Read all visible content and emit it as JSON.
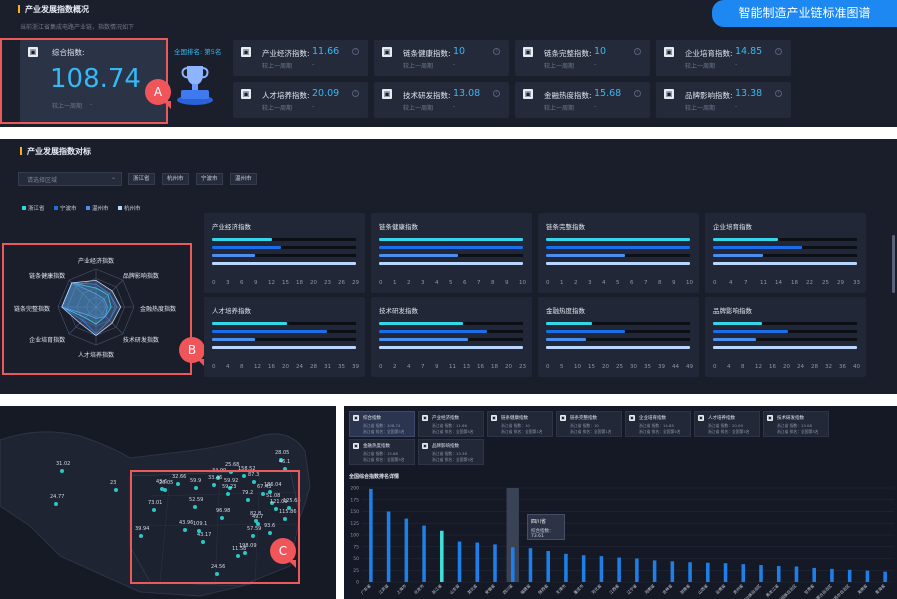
{
  "banner": {
    "title": "智能制造产业链标准图谱"
  },
  "p1": {
    "title": "产业发展指数概况",
    "subtitle": "当前浙江省集成电路产业链，指数情况如下",
    "composite": {
      "label": "综合指数:",
      "value": "108.74",
      "compare": "较上一周期",
      "compare_val": "-"
    },
    "rank": {
      "label": "全国排名:",
      "value": "第5名"
    },
    "metrics": [
      {
        "label": "产业经济指数:",
        "value": "11.66",
        "compare": "较上一周期",
        "cv": "-"
      },
      {
        "label": "链条健康指数:",
        "value": "10",
        "compare": "较上一周期",
        "cv": "-"
      },
      {
        "label": "链条完整指数:",
        "value": "10",
        "compare": "较上一周期",
        "cv": "-"
      },
      {
        "label": "企业培育指数:",
        "value": "14.85",
        "compare": "较上一周期",
        "cv": "-"
      },
      {
        "label": "人才培养指数:",
        "value": "20.09",
        "compare": "较上一周期",
        "cv": "-"
      },
      {
        "label": "技术研发指数:",
        "value": "13.08",
        "compare": "较上一周期",
        "cv": "-"
      },
      {
        "label": "金融热度指数:",
        "value": "15.68",
        "compare": "较上一周期",
        "cv": "-"
      },
      {
        "label": "品牌影响指数:",
        "value": "13.38",
        "compare": "较上一周期",
        "cv": "-"
      }
    ],
    "marker": "A"
  },
  "p2": {
    "title": "产业发展指数对标",
    "select_placeholder": "请选择区域",
    "chips": [
      "浙江省",
      "杭州市",
      "宁波市",
      "温州市"
    ],
    "legend": [
      {
        "name": "浙江省",
        "color": "#2fd8e0"
      },
      {
        "name": "宁波市",
        "color": "#1a6ee8"
      },
      {
        "name": "温州市",
        "color": "#4a8ef0"
      },
      {
        "name": "杭州市",
        "color": "#b9d6ff"
      }
    ],
    "radar_labels": [
      "产业经济指数",
      "品牌影响指数",
      "金融热度指数",
      "技术研发指数",
      "人才培养指数",
      "企业培育指数",
      "链条完整指数",
      "链条健康指数"
    ],
    "marker": "B",
    "bar_cards": [
      {
        "title": "产业经济指数",
        "ticks": [
          "0",
          "3",
          "6",
          "9",
          "12",
          "15",
          "18",
          "20",
          "23",
          "26",
          "29"
        ],
        "vals": [
          0.42,
          0.48,
          0.3,
          1.0
        ]
      },
      {
        "title": "链条健康指数",
        "ticks": [
          "0",
          "1",
          "2",
          "3",
          "4",
          "5",
          "6",
          "7",
          "8",
          "9",
          "10"
        ],
        "vals": [
          1.0,
          1.0,
          0.55,
          1.0
        ]
      },
      {
        "title": "链条完整指数",
        "ticks": [
          "0",
          "1",
          "2",
          "3",
          "4",
          "5",
          "6",
          "7",
          "8",
          "9",
          "10"
        ],
        "vals": [
          1.0,
          1.0,
          0.55,
          1.0
        ]
      },
      {
        "title": "企业培育指数",
        "ticks": [
          "0",
          "4",
          "7",
          "11",
          "14",
          "18",
          "22",
          "25",
          "29",
          "33"
        ],
        "vals": [
          0.45,
          0.62,
          0.35,
          1.0
        ]
      },
      {
        "title": "人才培养指数",
        "ticks": [
          "0",
          "4",
          "8",
          "12",
          "16",
          "20",
          "24",
          "28",
          "31",
          "35",
          "39"
        ],
        "vals": [
          0.52,
          0.8,
          0.3,
          1.0
        ]
      },
      {
        "title": "技术研发指数",
        "ticks": [
          "0",
          "2",
          "4",
          "7",
          "9",
          "11",
          "13",
          "16",
          "18",
          "20",
          "23"
        ],
        "vals": [
          0.58,
          0.75,
          0.62,
          1.0
        ]
      },
      {
        "title": "金融热度指数",
        "ticks": [
          "0",
          "5",
          "10",
          "15",
          "20",
          "25",
          "30",
          "35",
          "39",
          "44",
          "49"
        ],
        "vals": [
          0.32,
          0.55,
          0.28,
          1.0
        ]
      },
      {
        "title": "品牌影响指数",
        "ticks": [
          "0",
          "4",
          "8",
          "12",
          "16",
          "20",
          "24",
          "28",
          "32",
          "36",
          "40"
        ],
        "vals": [
          0.34,
          0.52,
          0.3,
          1.0
        ]
      }
    ]
  },
  "p3": {
    "marker": "C",
    "map_values": [
      "31.02",
      "24.77",
      "23",
      "39.94",
      "73.01",
      "43.96",
      "26.05",
      "43.6",
      "32.66",
      "59.9",
      "34.99",
      "33.46",
      "59.92",
      "158.52",
      "59.23",
      "96.98",
      "25.68",
      "79.2",
      "87.3",
      "67.43",
      "52.59",
      "51.08",
      "49.7",
      "121.09",
      "115.86",
      "125.68",
      "186.04",
      "28.05",
      "46.1",
      "43.17",
      "109.1",
      "57.59",
      "93.6",
      "11.58",
      "82.8",
      "24.56",
      "198.09"
    ]
  },
  "p4": {
    "tabs": [
      {
        "label": "综合指数",
        "l1": "浙江省 指数：108.74",
        "l2": "浙江省 排名：全国第5名"
      },
      {
        "label": "产业经济指数",
        "l1": "浙江省 指数：11.66",
        "l2": "浙江省 排名：全国第5名"
      },
      {
        "label": "链条健康指数",
        "l1": "浙江省 指数：10",
        "l2": "浙江省 排名：全国第1名"
      },
      {
        "label": "链条完整指数",
        "l1": "浙江省 指数：10",
        "l2": "浙江省 排名：全国第1名"
      },
      {
        "label": "企业培育指数",
        "l1": "浙江省 指数：14.85",
        "l2": "浙江省 排名：全国第5名"
      },
      {
        "label": "人才培养指数",
        "l1": "浙江省 指数：20.09",
        "l2": "浙江省 排名：全国第5名"
      },
      {
        "label": "技术研发指数",
        "l1": "浙江省 指数：13.08",
        "l2": "浙江省 排名：全国第5名"
      },
      {
        "label": "金融热度指数",
        "l1": "浙江省 指数：15.68",
        "l2": "浙江省 排名：全国第5名"
      },
      {
        "label": "品牌影响指数",
        "l1": "浙江省 指数：13.38",
        "l2": "浙江省 排名：全国第5名"
      }
    ],
    "chart_caption": "全国综合指数排名详情",
    "tooltip": {
      "title": "四川省",
      "line": "综合指数：73.61"
    }
  },
  "chart_data": {
    "type": "bar",
    "title": "全国综合指数排名详情",
    "ylim": [
      0,
      200
    ],
    "yticks": [
      "0",
      "25",
      "50",
      "75",
      "100",
      "125",
      "150",
      "175",
      "200"
    ],
    "categories": [
      "广东省",
      "江苏省",
      "上海市",
      "北京市",
      "浙江省",
      "山东省",
      "湖北省",
      "安徽省",
      "四川省",
      "福建省",
      "陕西省",
      "天津市",
      "重庆市",
      "河北省",
      "江西省",
      "辽宁省",
      "河南省",
      "吉林省",
      "湖南省",
      "山西省",
      "云南省",
      "贵州省",
      "广西壮族自治区",
      "黑龙江省",
      "宁夏回族自治区",
      "甘肃省",
      "内蒙古自治区",
      "新疆维吾尔自治区",
      "海南省",
      "青海省"
    ],
    "values": [
      198,
      150,
      135,
      120,
      109,
      86,
      84,
      80,
      74,
      72,
      66,
      60,
      57,
      55,
      52,
      50,
      46,
      44,
      42,
      41,
      40,
      38,
      36,
      34,
      33,
      30,
      28,
      26,
      24,
      22
    ],
    "highlight_index": 4,
    "hover_index": 8,
    "colors": {
      "bar": "#1e7fe8",
      "highlight": "#3fe0d9",
      "hover_band": "#3a4256"
    }
  }
}
